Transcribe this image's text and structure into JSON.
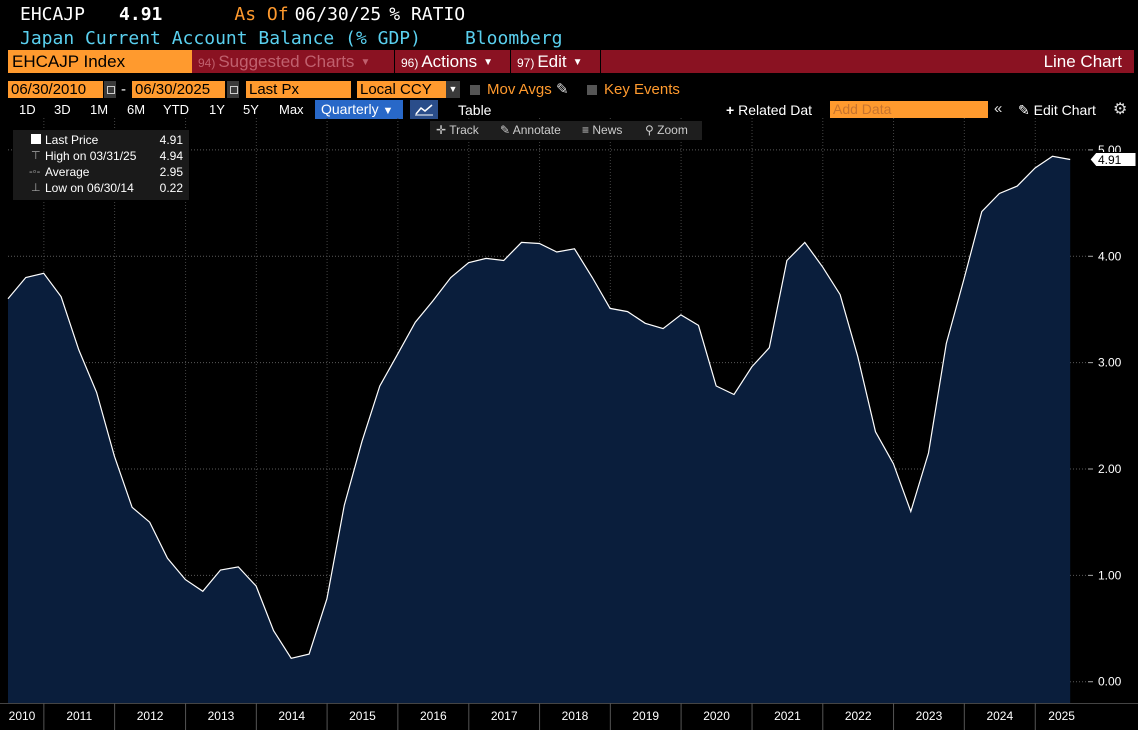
{
  "header": {
    "ticker": "EHCAJP",
    "price": "4.91",
    "as_of_label": "As Of",
    "as_of_date": "06/30/25",
    "unit": "% RATIO",
    "description": "Japan Current Account Balance (% GDP)",
    "source": "Bloomberg"
  },
  "toolbar": {
    "index_label": "EHCAJP Index",
    "suggested": {
      "num": "94)",
      "label": "Suggested Charts"
    },
    "actions": {
      "num": "96)",
      "label": "Actions"
    },
    "edit": {
      "num": "97)",
      "label": "Edit"
    },
    "chart_type_label": "Line Chart"
  },
  "controls": {
    "start_date": "06/30/2010",
    "dash": "-",
    "end_date": "06/30/2025",
    "field": "Last Px",
    "currency": "Local CCY",
    "mov_avgs": "Mov Avgs",
    "key_events": "Key Events"
  },
  "ranges": [
    "1D",
    "3D",
    "1M",
    "6M",
    "YTD",
    "1Y",
    "5Y",
    "Max"
  ],
  "frequency": "Quarterly",
  "table_label": "Table",
  "related_label": "Related Dat",
  "add_data_placeholder": "Add Data",
  "edit_chart_label": "Edit Chart",
  "tools": [
    "Track",
    "Annotate",
    "News",
    "Zoom"
  ],
  "legend": {
    "rows": [
      {
        "label": "Last Price",
        "value": "4.91"
      },
      {
        "label": "High on 03/31/25",
        "value": "4.94"
      },
      {
        "label": "Average",
        "value": "2.95"
      },
      {
        "label": "Low on 06/30/14",
        "value": "0.22"
      }
    ]
  },
  "colors": {
    "fill": "#0a1e3c",
    "line": "#ffffff",
    "orange": "#ff9a2e",
    "cyan": "#5ad0ef",
    "barred": "#8a1222"
  },
  "chart_data": {
    "type": "area",
    "series": [
      {
        "name": "Last Price",
        "x": [
          "2010-06-30",
          "2010-09-30",
          "2010-12-31",
          "2011-03-31",
          "2011-06-30",
          "2011-09-30",
          "2011-12-31",
          "2012-03-31",
          "2012-06-30",
          "2012-09-30",
          "2012-12-31",
          "2013-03-31",
          "2013-06-30",
          "2013-09-30",
          "2013-12-31",
          "2014-03-31",
          "2014-06-30",
          "2014-09-30",
          "2014-12-31",
          "2015-03-31",
          "2015-06-30",
          "2015-09-30",
          "2015-12-31",
          "2016-03-31",
          "2016-06-30",
          "2016-09-30",
          "2016-12-31",
          "2017-03-31",
          "2017-06-30",
          "2017-09-30",
          "2017-12-31",
          "2018-03-31",
          "2018-06-30",
          "2018-09-30",
          "2018-12-31",
          "2019-03-31",
          "2019-06-30",
          "2019-09-30",
          "2019-12-31",
          "2020-03-31",
          "2020-06-30",
          "2020-09-30",
          "2020-12-31",
          "2021-03-31",
          "2021-06-30",
          "2021-09-30",
          "2021-12-31",
          "2022-03-31",
          "2022-06-30",
          "2022-09-30",
          "2022-12-31",
          "2023-03-31",
          "2023-06-30",
          "2023-09-30",
          "2023-12-31",
          "2024-03-31",
          "2024-06-30",
          "2024-09-30",
          "2024-12-31",
          "2025-03-31",
          "2025-06-30"
        ],
        "values": [
          3.6,
          3.8,
          3.84,
          3.62,
          3.12,
          2.72,
          2.12,
          1.64,
          1.5,
          1.16,
          0.96,
          0.85,
          1.05,
          1.08,
          0.9,
          0.48,
          0.22,
          0.26,
          0.78,
          1.66,
          2.26,
          2.78,
          3.08,
          3.38,
          3.58,
          3.8,
          3.94,
          3.98,
          3.96,
          4.13,
          4.12,
          4.04,
          4.07,
          3.8,
          3.51,
          3.48,
          3.37,
          3.32,
          3.45,
          3.35,
          2.78,
          2.7,
          2.96,
          3.14,
          3.96,
          4.13,
          3.9,
          3.64,
          3.06,
          2.35,
          2.05,
          1.6,
          2.15,
          3.18,
          3.79,
          4.42,
          4.59,
          4.66,
          4.83,
          4.94,
          4.91
        ]
      }
    ],
    "x_ticks": [
      "2010",
      "2011",
      "2012",
      "2013",
      "2014",
      "2015",
      "2016",
      "2017",
      "2018",
      "2019",
      "2020",
      "2021",
      "2022",
      "2023",
      "2024",
      "2025"
    ],
    "y_ticks": [
      "0.00",
      "1.00",
      "2.00",
      "3.00",
      "4.00",
      "5.00"
    ],
    "ylim": [
      -0.2,
      5.3
    ],
    "xlim": [
      "2010-06-30",
      "2025-09-30"
    ],
    "last_value_label": "4.91",
    "grid": true
  }
}
